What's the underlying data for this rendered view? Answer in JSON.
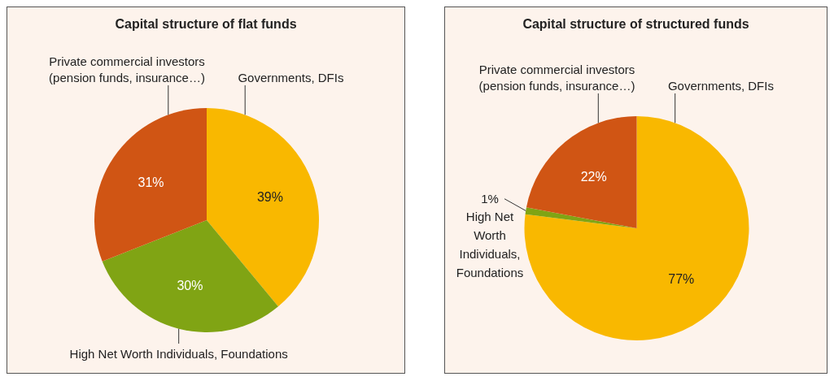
{
  "chart_data": [
    {
      "type": "pie",
      "title": "Capital structure of flat funds",
      "categories": [
        "Governments, DFIs",
        "High Net Worth Individuals, Foundations",
        "Private commercial investors (pension funds, insurance…)"
      ],
      "values": [
        39,
        30,
        31
      ],
      "colors": [
        "#f9b800",
        "#80a414",
        "#d05514"
      ],
      "value_labels": [
        "39%",
        "30%",
        "31%"
      ]
    },
    {
      "type": "pie",
      "title": "Capital structure of structured funds",
      "categories": [
        "Governments, DFIs",
        "High Net Worth Individuals, Foundations",
        "Private commercial investors (pension funds, insurance…)"
      ],
      "values": [
        77,
        1,
        22
      ],
      "colors": [
        "#f9b800",
        "#80a414",
        "#d05514"
      ],
      "value_labels": [
        "77%",
        "1%",
        "22%"
      ]
    }
  ]
}
